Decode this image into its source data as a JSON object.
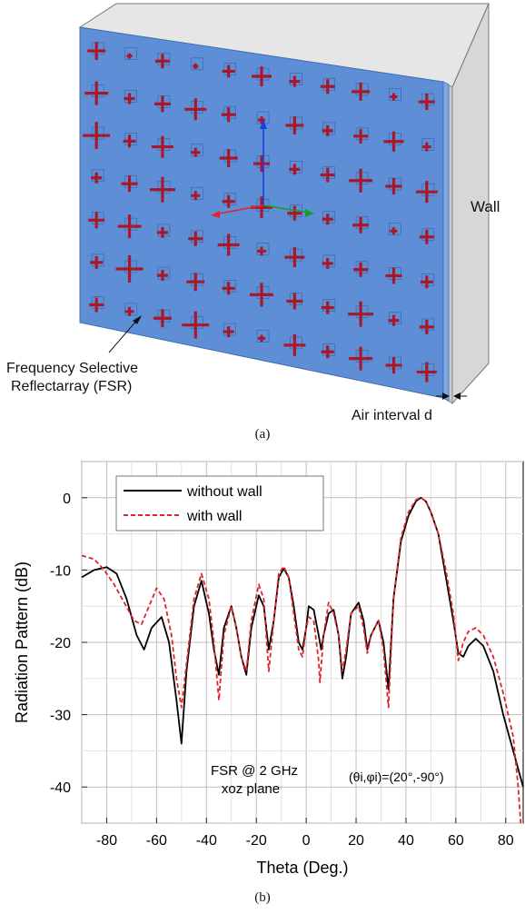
{
  "figure_a": {
    "caption": "(a)",
    "wall_label": "Wall",
    "fsr_label_line1": "Frequency Selective",
    "fsr_label_line2": "Reflectarray (FSR)",
    "air_label": "Air interval d",
    "colors": {
      "panel": "#5e8fd6",
      "wall": "#d7d7d7",
      "cross": "#a8182a"
    }
  },
  "figure_b": {
    "caption": "(b)",
    "annotation_line1": "FSR @ 2 GHz",
    "annotation_line2": "xoz plane",
    "angle_annotation": "(θi,φi)=(20°,-90°)"
  },
  "chart_data": {
    "type": "line",
    "xlabel": "Theta (Deg.)",
    "ylabel": "Radiation Pattern (dB)",
    "xlim": [
      -90,
      87
    ],
    "ylim": [
      -45,
      5
    ],
    "xticks": [
      -80,
      -60,
      -40,
      -20,
      0,
      20,
      40,
      60,
      80
    ],
    "yticks": [
      0,
      -10,
      -20,
      -30,
      -40
    ],
    "grid": true,
    "legend": "top-left",
    "series": [
      {
        "name": "without wall",
        "color": "#000000",
        "style": "solid",
        "points": [
          [
            -90,
            -11
          ],
          [
            -85,
            -10
          ],
          [
            -80,
            -9.6
          ],
          [
            -76,
            -10.5
          ],
          [
            -72,
            -14
          ],
          [
            -68,
            -19
          ],
          [
            -65,
            -21
          ],
          [
            -62,
            -18
          ],
          [
            -58,
            -16.5
          ],
          [
            -55,
            -20
          ],
          [
            -52,
            -28
          ],
          [
            -50,
            -34
          ],
          [
            -48,
            -24
          ],
          [
            -45,
            -15
          ],
          [
            -42,
            -11.5
          ],
          [
            -39,
            -16
          ],
          [
            -37,
            -21
          ],
          [
            -35,
            -24.5
          ],
          [
            -33,
            -18
          ],
          [
            -30,
            -15
          ],
          [
            -28,
            -18
          ],
          [
            -26,
            -22
          ],
          [
            -24,
            -24.5
          ],
          [
            -22,
            -18
          ],
          [
            -19,
            -13.5
          ],
          [
            -17,
            -15
          ],
          [
            -15,
            -21
          ],
          [
            -13,
            -17
          ],
          [
            -11,
            -11
          ],
          [
            -9,
            -9.8
          ],
          [
            -7,
            -11
          ],
          [
            -5,
            -15
          ],
          [
            -3,
            -20
          ],
          [
            -1.5,
            -21
          ],
          [
            0,
            -18
          ],
          [
            1,
            -15
          ],
          [
            3,
            -15.5
          ],
          [
            5,
            -19
          ],
          [
            6,
            -21
          ],
          [
            7,
            -19
          ],
          [
            9,
            -16
          ],
          [
            11,
            -15.5
          ],
          [
            13,
            -19
          ],
          [
            14.5,
            -25
          ],
          [
            16,
            -22
          ],
          [
            18,
            -16
          ],
          [
            21,
            -14.5
          ],
          [
            23,
            -17
          ],
          [
            24.5,
            -21
          ],
          [
            26,
            -19
          ],
          [
            29,
            -17
          ],
          [
            31,
            -20
          ],
          [
            33,
            -26.5
          ],
          [
            35,
            -14
          ],
          [
            38,
            -6
          ],
          [
            41,
            -2.5
          ],
          [
            44,
            -0.5
          ],
          [
            46,
            0
          ],
          [
            48,
            -0.5
          ],
          [
            50,
            -2
          ],
          [
            53,
            -5
          ],
          [
            56,
            -11
          ],
          [
            59,
            -17
          ],
          [
            61,
            -21.5
          ],
          [
            63,
            -22
          ],
          [
            65,
            -20.5
          ],
          [
            68,
            -19.5
          ],
          [
            71,
            -20.5
          ],
          [
            75,
            -24
          ],
          [
            79,
            -30
          ],
          [
            83,
            -35
          ],
          [
            87,
            -40
          ]
        ]
      },
      {
        "name": "with wall",
        "color": "#e0242a",
        "style": "dashed",
        "points": [
          [
            -90,
            -8
          ],
          [
            -85,
            -8.5
          ],
          [
            -81,
            -10
          ],
          [
            -77,
            -12
          ],
          [
            -73,
            -14.5
          ],
          [
            -69,
            -17
          ],
          [
            -66,
            -17.5
          ],
          [
            -63,
            -15
          ],
          [
            -60,
            -12.5
          ],
          [
            -57,
            -14
          ],
          [
            -54,
            -19
          ],
          [
            -52,
            -25
          ],
          [
            -50,
            -29
          ],
          [
            -48,
            -23
          ],
          [
            -45,
            -14
          ],
          [
            -42,
            -10.5
          ],
          [
            -39,
            -14
          ],
          [
            -37,
            -20
          ],
          [
            -35,
            -28
          ],
          [
            -33,
            -19
          ],
          [
            -30,
            -15
          ],
          [
            -28,
            -18
          ],
          [
            -26,
            -22
          ],
          [
            -24,
            -24
          ],
          [
            -22,
            -17
          ],
          [
            -19,
            -12
          ],
          [
            -17,
            -14
          ],
          [
            -15,
            -24
          ],
          [
            -13,
            -17
          ],
          [
            -11,
            -10.5
          ],
          [
            -9,
            -9.5
          ],
          [
            -7,
            -11
          ],
          [
            -5,
            -16
          ],
          [
            -3,
            -21
          ],
          [
            -1.5,
            -22
          ],
          [
            0,
            -18
          ],
          [
            1,
            -16.5
          ],
          [
            3,
            -17
          ],
          [
            5,
            -22.5
          ],
          [
            5.5,
            -25.5
          ],
          [
            7,
            -19
          ],
          [
            9,
            -14.5
          ],
          [
            11,
            -16
          ],
          [
            13,
            -19
          ],
          [
            14.5,
            -24
          ],
          [
            16,
            -21
          ],
          [
            18,
            -16
          ],
          [
            21,
            -15
          ],
          [
            23,
            -18
          ],
          [
            24.5,
            -21.5
          ],
          [
            26,
            -19
          ],
          [
            29,
            -17
          ],
          [
            31,
            -21
          ],
          [
            33,
            -29
          ],
          [
            35,
            -14
          ],
          [
            38,
            -5.5
          ],
          [
            41,
            -2
          ],
          [
            44,
            -0.3
          ],
          [
            46,
            0
          ],
          [
            48,
            -0.5
          ],
          [
            50,
            -2
          ],
          [
            53,
            -5
          ],
          [
            56,
            -10
          ],
          [
            59,
            -16
          ],
          [
            61,
            -22.5
          ],
          [
            63,
            -20
          ],
          [
            65,
            -18.5
          ],
          [
            68,
            -18
          ],
          [
            71,
            -19
          ],
          [
            75,
            -22
          ],
          [
            79,
            -27
          ],
          [
            83,
            -33
          ],
          [
            85,
            -40
          ],
          [
            86,
            -45
          ]
        ]
      }
    ]
  }
}
